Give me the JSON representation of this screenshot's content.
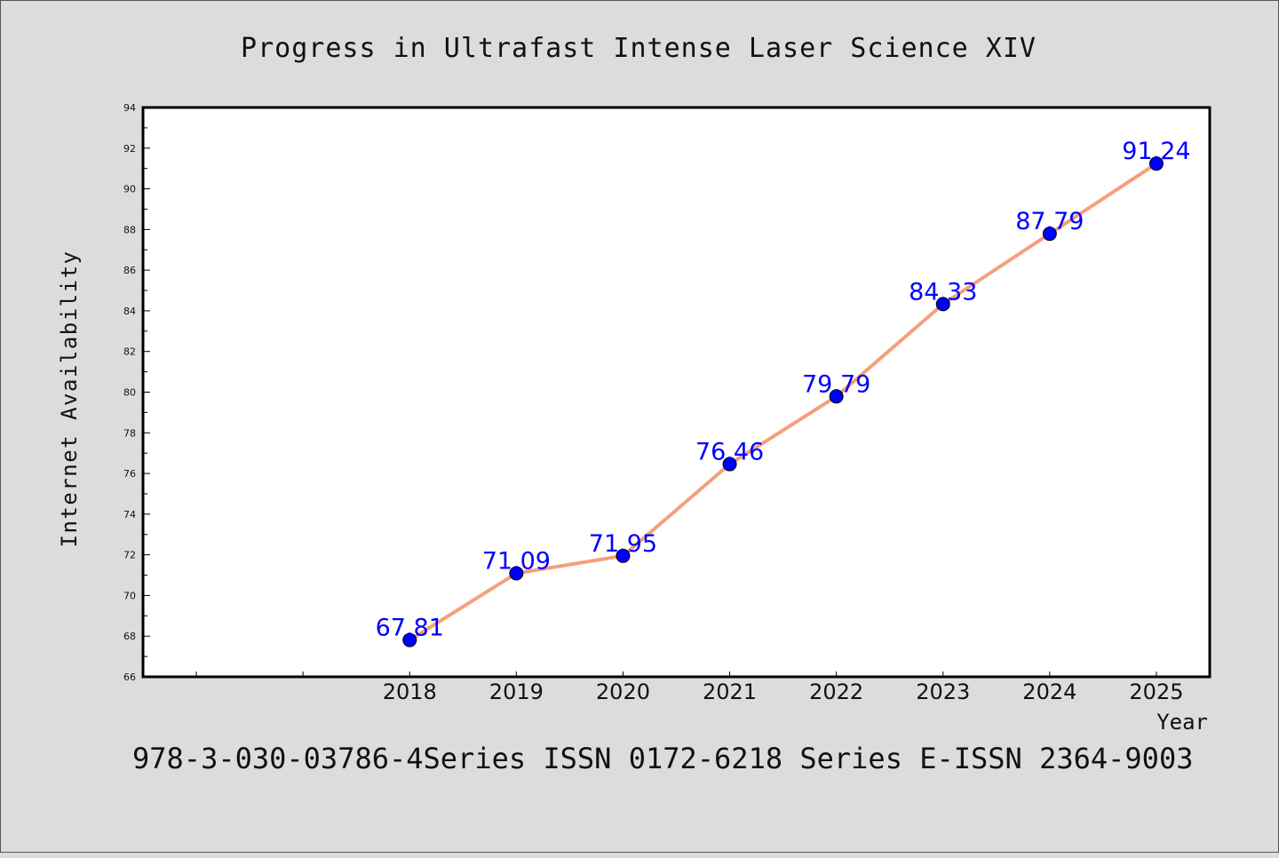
{
  "title": "Progress in Ultrafast Intense Laser Science XIV",
  "footer": "978-3-030-03786-4Series ISSN 0172-6218 Series E-ISSN 2364-9003",
  "colors": {
    "background": "#dcdcdc",
    "plot_background": "#ffffff",
    "line": "#f4a07c",
    "marker": "#0000ff",
    "data_label": "#0000ff"
  },
  "chart_data": {
    "type": "line",
    "title": "Progress in Ultrafast Intense Laser Science XIV",
    "xlabel": "Year",
    "ylabel": "Internet Availability",
    "x": [
      2018,
      2019,
      2020,
      2021,
      2022,
      2023,
      2024,
      2025
    ],
    "x_tick_labels": [
      "2018",
      "2019",
      "2020",
      "2021",
      "2022",
      "2023",
      "2024",
      "2025"
    ],
    "xlim": [
      2015.5,
      2025.5
    ],
    "series": [
      {
        "values": [
          67.81,
          71.09,
          71.95,
          76.46,
          79.79,
          84.33,
          87.79,
          91.24
        ],
        "labels": [
          "67.81",
          "71.09",
          "71.95",
          "76.46",
          "79.79",
          "84.33",
          "87.79",
          "91.24"
        ]
      }
    ],
    "ylim": [
      66,
      94
    ],
    "y_ticks": [
      66,
      68,
      70,
      72,
      74,
      76,
      78,
      80,
      82,
      84,
      86,
      88,
      90,
      92,
      94
    ],
    "grid": false,
    "legend": "none"
  }
}
